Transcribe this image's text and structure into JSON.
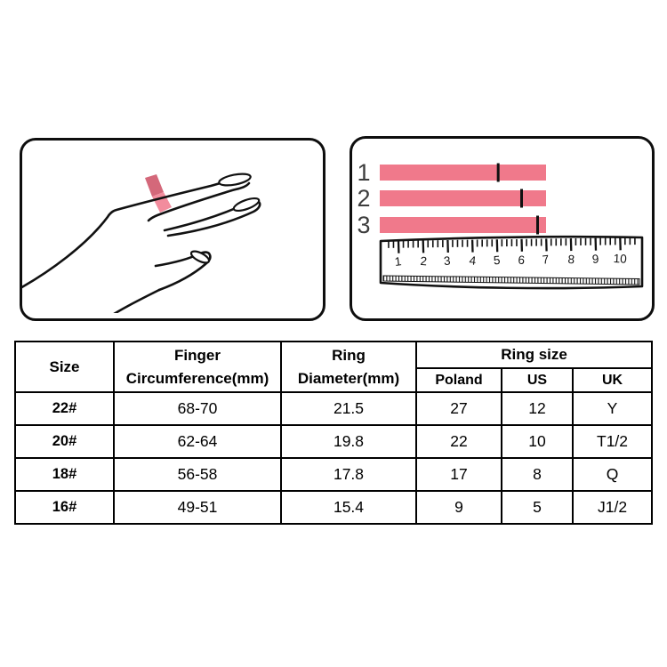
{
  "left_panel": {
    "illustration": "hand-with-ring",
    "ring_color_dark": "#d4687a",
    "ring_color_light": "#f28c9d"
  },
  "measure_panel": {
    "bar_color": "#f0798b",
    "bars": [
      {
        "label": "1",
        "mark_ruler_value": 5.05
      },
      {
        "label": "2",
        "mark_ruler_value": 6.0
      },
      {
        "label": "3",
        "mark_ruler_value": 6.65
      }
    ],
    "bars_end_ruler_value": 7,
    "ruler_numbers": [
      "1",
      "2",
      "3",
      "4",
      "5",
      "6",
      "7",
      "8",
      "9",
      "10"
    ]
  },
  "size_table": {
    "headers": {
      "size": "Size",
      "finger_circumference": "Finger\nCircumference(mm)",
      "ring_diameter": "Ring\nDiameter(mm)",
      "ring_size_group": "Ring size",
      "sub": [
        "Poland",
        "US",
        "UK"
      ]
    },
    "rows": [
      {
        "size": "22#",
        "circumference": "68-70",
        "diameter": "21.5",
        "poland": "27",
        "us": "12",
        "uk": "Y"
      },
      {
        "size": "20#",
        "circumference": "62-64",
        "diameter": "19.8",
        "poland": "22",
        "us": "10",
        "uk": "T1/2"
      },
      {
        "size": "18#",
        "circumference": "56-58",
        "diameter": "17.8",
        "poland": "17",
        "us": "8",
        "uk": "Q"
      },
      {
        "size": "16#",
        "circumference": "49-51",
        "diameter": "15.4",
        "poland": "9",
        "us": "5",
        "uk": "J1/2"
      }
    ]
  }
}
